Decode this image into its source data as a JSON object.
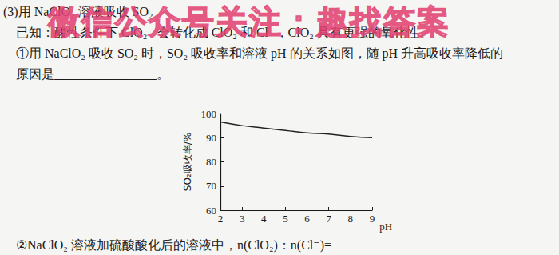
{
  "document": {
    "lines": [
      "(3)用 NaClO₂ 溶液吸收 SO₂",
      "已知：酸性条件下 ClO₂⁻ 会转化成 ClO₂ 和 Cl⁻，ClO₂ 具有更强的氧化性。",
      "①用 NaClO₂ 吸收 SO₂ 时，SO₂ 吸收率和溶液 pH 的关系如图，随 pH 升高吸收率降低的",
      "原因是________________。"
    ],
    "footer": "②NaClO₂ 溶液加硫酸酸化后的溶液中，n(ClO₂)：n(Cl⁻)=",
    "watermark": "微信公众号关注：趣找答案"
  },
  "chart_data": {
    "type": "line",
    "x": [
      2,
      3,
      4,
      5,
      6,
      7,
      8,
      9
    ],
    "values": [
      96.5,
      95,
      94,
      93,
      92,
      91.5,
      90.5,
      90
    ],
    "xlabel": "pH",
    "ylabel": "SO₂吸收率/%",
    "xlim": [
      2,
      9
    ],
    "ylim": [
      60,
      100
    ],
    "xticks": [
      2,
      3,
      4,
      5,
      6,
      7,
      8,
      9
    ],
    "yticks": [
      60,
      70,
      80,
      90,
      100
    ],
    "grid": false,
    "color": "#222222",
    "marker": "none",
    "line_style": "solid"
  }
}
